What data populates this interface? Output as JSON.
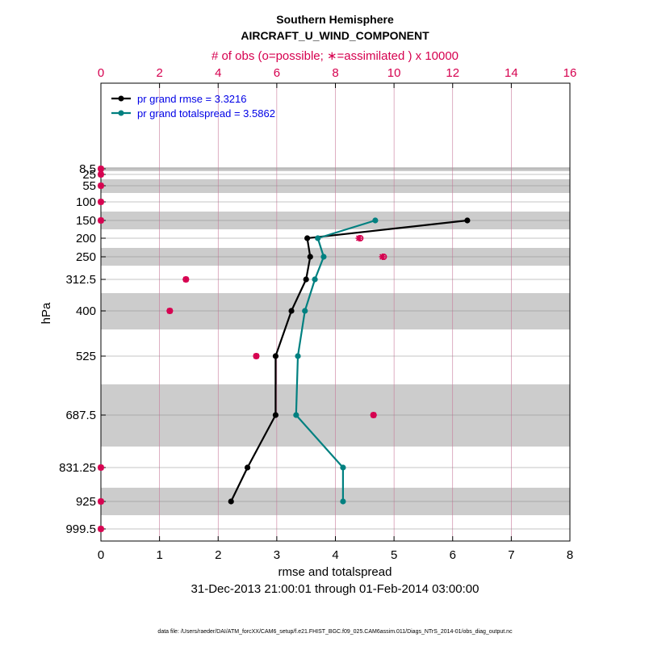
{
  "chart_data": {
    "type": "line",
    "title": "Southern Hemisphere",
    "subtitle": "AIRCRAFT_U_WIND_COMPONENT",
    "top_axis_label": "# of obs (o=possible; ∗=assimilated ) x 10000",
    "xlabel": "rmse and totalspread",
    "ylabel": "hPa",
    "date_range": "31-Dec-2013 21:00:01 through 01-Feb-2014 03:00:00",
    "footnote": "data file: /Users/raeder/DAI/ATM_forcXX/CAM6_setup/f.e21.FHIST_BGC.f09_025.CAM6assim.011/Diags_NTrS_2014-01/obs_diag_output.nc",
    "xlim": [
      0,
      8
    ],
    "x_ticks": [
      "0",
      "1",
      "2",
      "3",
      "4",
      "5",
      "6",
      "7",
      "8"
    ],
    "top_xlim": [
      0,
      16
    ],
    "top_ticks": [
      "0",
      "2",
      "4",
      "6",
      "8",
      "10",
      "12",
      "14",
      "16"
    ],
    "levels": [
      8.5,
      25,
      55,
      100,
      150,
      200,
      250,
      312.5,
      400,
      525,
      687.5,
      831.25,
      925,
      999.5
    ],
    "level_labels": [
      "8.5",
      "25",
      "55",
      "100",
      "150",
      "200",
      "250",
      "312.5",
      "400",
      "525",
      "687.5",
      "831.25",
      "925",
      "999.5"
    ],
    "series": [
      {
        "name": "rmse",
        "legend": "pr grand rmse = 3.3216",
        "color": "#000000",
        "points": [
          {
            "level": 150,
            "value": 6.25
          },
          {
            "level": 200,
            "value": 3.52
          },
          {
            "level": 250,
            "value": 3.57
          },
          {
            "level": 312.5,
            "value": 3.5
          },
          {
            "level": 400,
            "value": 3.25
          },
          {
            "level": 525,
            "value": 2.98
          },
          {
            "level": 687.5,
            "value": 2.98
          },
          {
            "level": 831.25,
            "value": 2.5
          },
          {
            "level": 925,
            "value": 2.22
          }
        ]
      },
      {
        "name": "totalspread",
        "legend": "pr grand totalspread = 3.5862",
        "color": "#008080",
        "points": [
          {
            "level": 150,
            "value": 4.68
          },
          {
            "level": 200,
            "value": 3.7
          },
          {
            "level": 250,
            "value": 3.8
          },
          {
            "level": 312.5,
            "value": 3.65
          },
          {
            "level": 400,
            "value": 3.48
          },
          {
            "level": 525,
            "value": 3.36
          },
          {
            "level": 687.5,
            "value": 3.33
          },
          {
            "level": 831.25,
            "value": 4.13
          },
          {
            "level": 925,
            "value": 4.13
          }
        ]
      }
    ],
    "obs_count": {
      "color": "#d6004f",
      "units": "x 10000",
      "points": [
        {
          "level": 8.5,
          "possible": 0,
          "assimilated": 0
        },
        {
          "level": 25,
          "possible": 0,
          "assimilated": 0
        },
        {
          "level": 55,
          "possible": 0,
          "assimilated": 0
        },
        {
          "level": 100,
          "possible": 0,
          "assimilated": 0
        },
        {
          "level": 150,
          "possible": 0,
          "assimilated": 0
        },
        {
          "level": 200,
          "possible": 8.85,
          "assimilated": 8.8
        },
        {
          "level": 250,
          "possible": 9.65,
          "assimilated": 9.6
        },
        {
          "level": 312.5,
          "possible": 2.9,
          "assimilated": 2.9
        },
        {
          "level": 400,
          "possible": 2.35,
          "assimilated": 2.35
        },
        {
          "level": 525,
          "possible": 5.3,
          "assimilated": 5.3
        },
        {
          "level": 687.5,
          "possible": 9.3,
          "assimilated": 9.3
        },
        {
          "level": 831.25,
          "possible": 0,
          "assimilated": 0
        },
        {
          "level": 925,
          "possible": 0,
          "assimilated": 0
        },
        {
          "level": 999.5,
          "possible": 0,
          "assimilated": 0
        }
      ]
    }
  }
}
